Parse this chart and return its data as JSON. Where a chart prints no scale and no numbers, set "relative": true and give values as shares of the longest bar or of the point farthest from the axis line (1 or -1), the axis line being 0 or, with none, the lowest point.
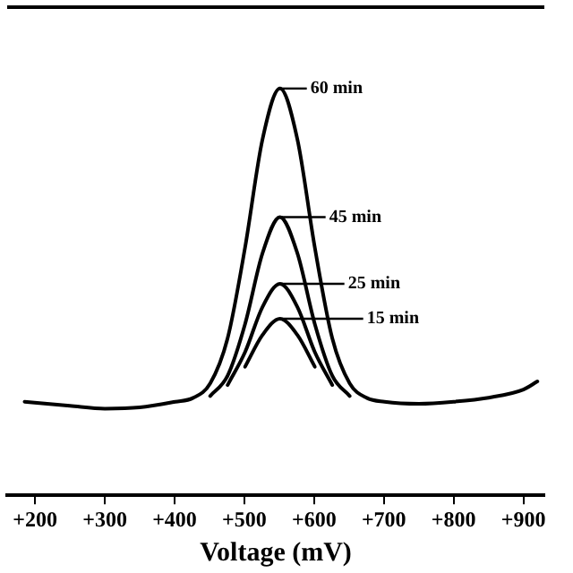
{
  "chart_data": {
    "type": "line",
    "relative": true,
    "xlabel": "Voltage (mV)",
    "xlim": [
      160,
      930
    ],
    "xticks": [
      {
        "value": 200,
        "label": "+200"
      },
      {
        "value": 300,
        "label": "+300"
      },
      {
        "value": 400,
        "label": "+400"
      },
      {
        "value": 500,
        "label": "+500"
      },
      {
        "value": 600,
        "label": "+600"
      },
      {
        "value": 700,
        "label": "+700"
      },
      {
        "value": 800,
        "label": "+800"
      },
      {
        "value": 900,
        "label": "+900"
      }
    ],
    "tick_labels": "x",
    "grid": false,
    "legend": "top",
    "marker": "none",
    "line_style": "solid",
    "series": [
      {
        "name": "60 min",
        "color": "#000000",
        "x": [
          185,
          250,
          300,
          350,
          401,
          426,
          451,
          476,
          501,
          526,
          551,
          576,
          601,
          626,
          651,
          676,
          701,
          750,
          800,
          850,
          900,
          920
        ],
        "values": [
          0.23,
          0.22,
          0.213,
          0.216,
          0.23,
          0.239,
          0.275,
          0.386,
          0.609,
          0.875,
          1,
          0.875,
          0.609,
          0.386,
          0.275,
          0.239,
          0.23,
          0.225,
          0.23,
          0.24,
          0.26,
          0.28
        ]
      },
      {
        "name": "45 min",
        "color": "#000000",
        "x": [
          451,
          476,
          501,
          526,
          551,
          576,
          601,
          626,
          651
        ],
        "values": [
          0.244,
          0.294,
          0.421,
          0.595,
          0.684,
          0.595,
          0.421,
          0.294,
          0.244
        ]
      },
      {
        "name": "25 min",
        "color": "#000000",
        "x": [
          476,
          501,
          526,
          551,
          576,
          601,
          626
        ],
        "values": [
          0.271,
          0.352,
          0.463,
          0.52,
          0.463,
          0.352,
          0.271
        ]
      },
      {
        "name": "15 min",
        "color": "#000000",
        "x": [
          501,
          526,
          551,
          576,
          601
        ],
        "values": [
          0.316,
          0.394,
          0.434,
          0.394,
          0.316
        ]
      }
    ]
  }
}
